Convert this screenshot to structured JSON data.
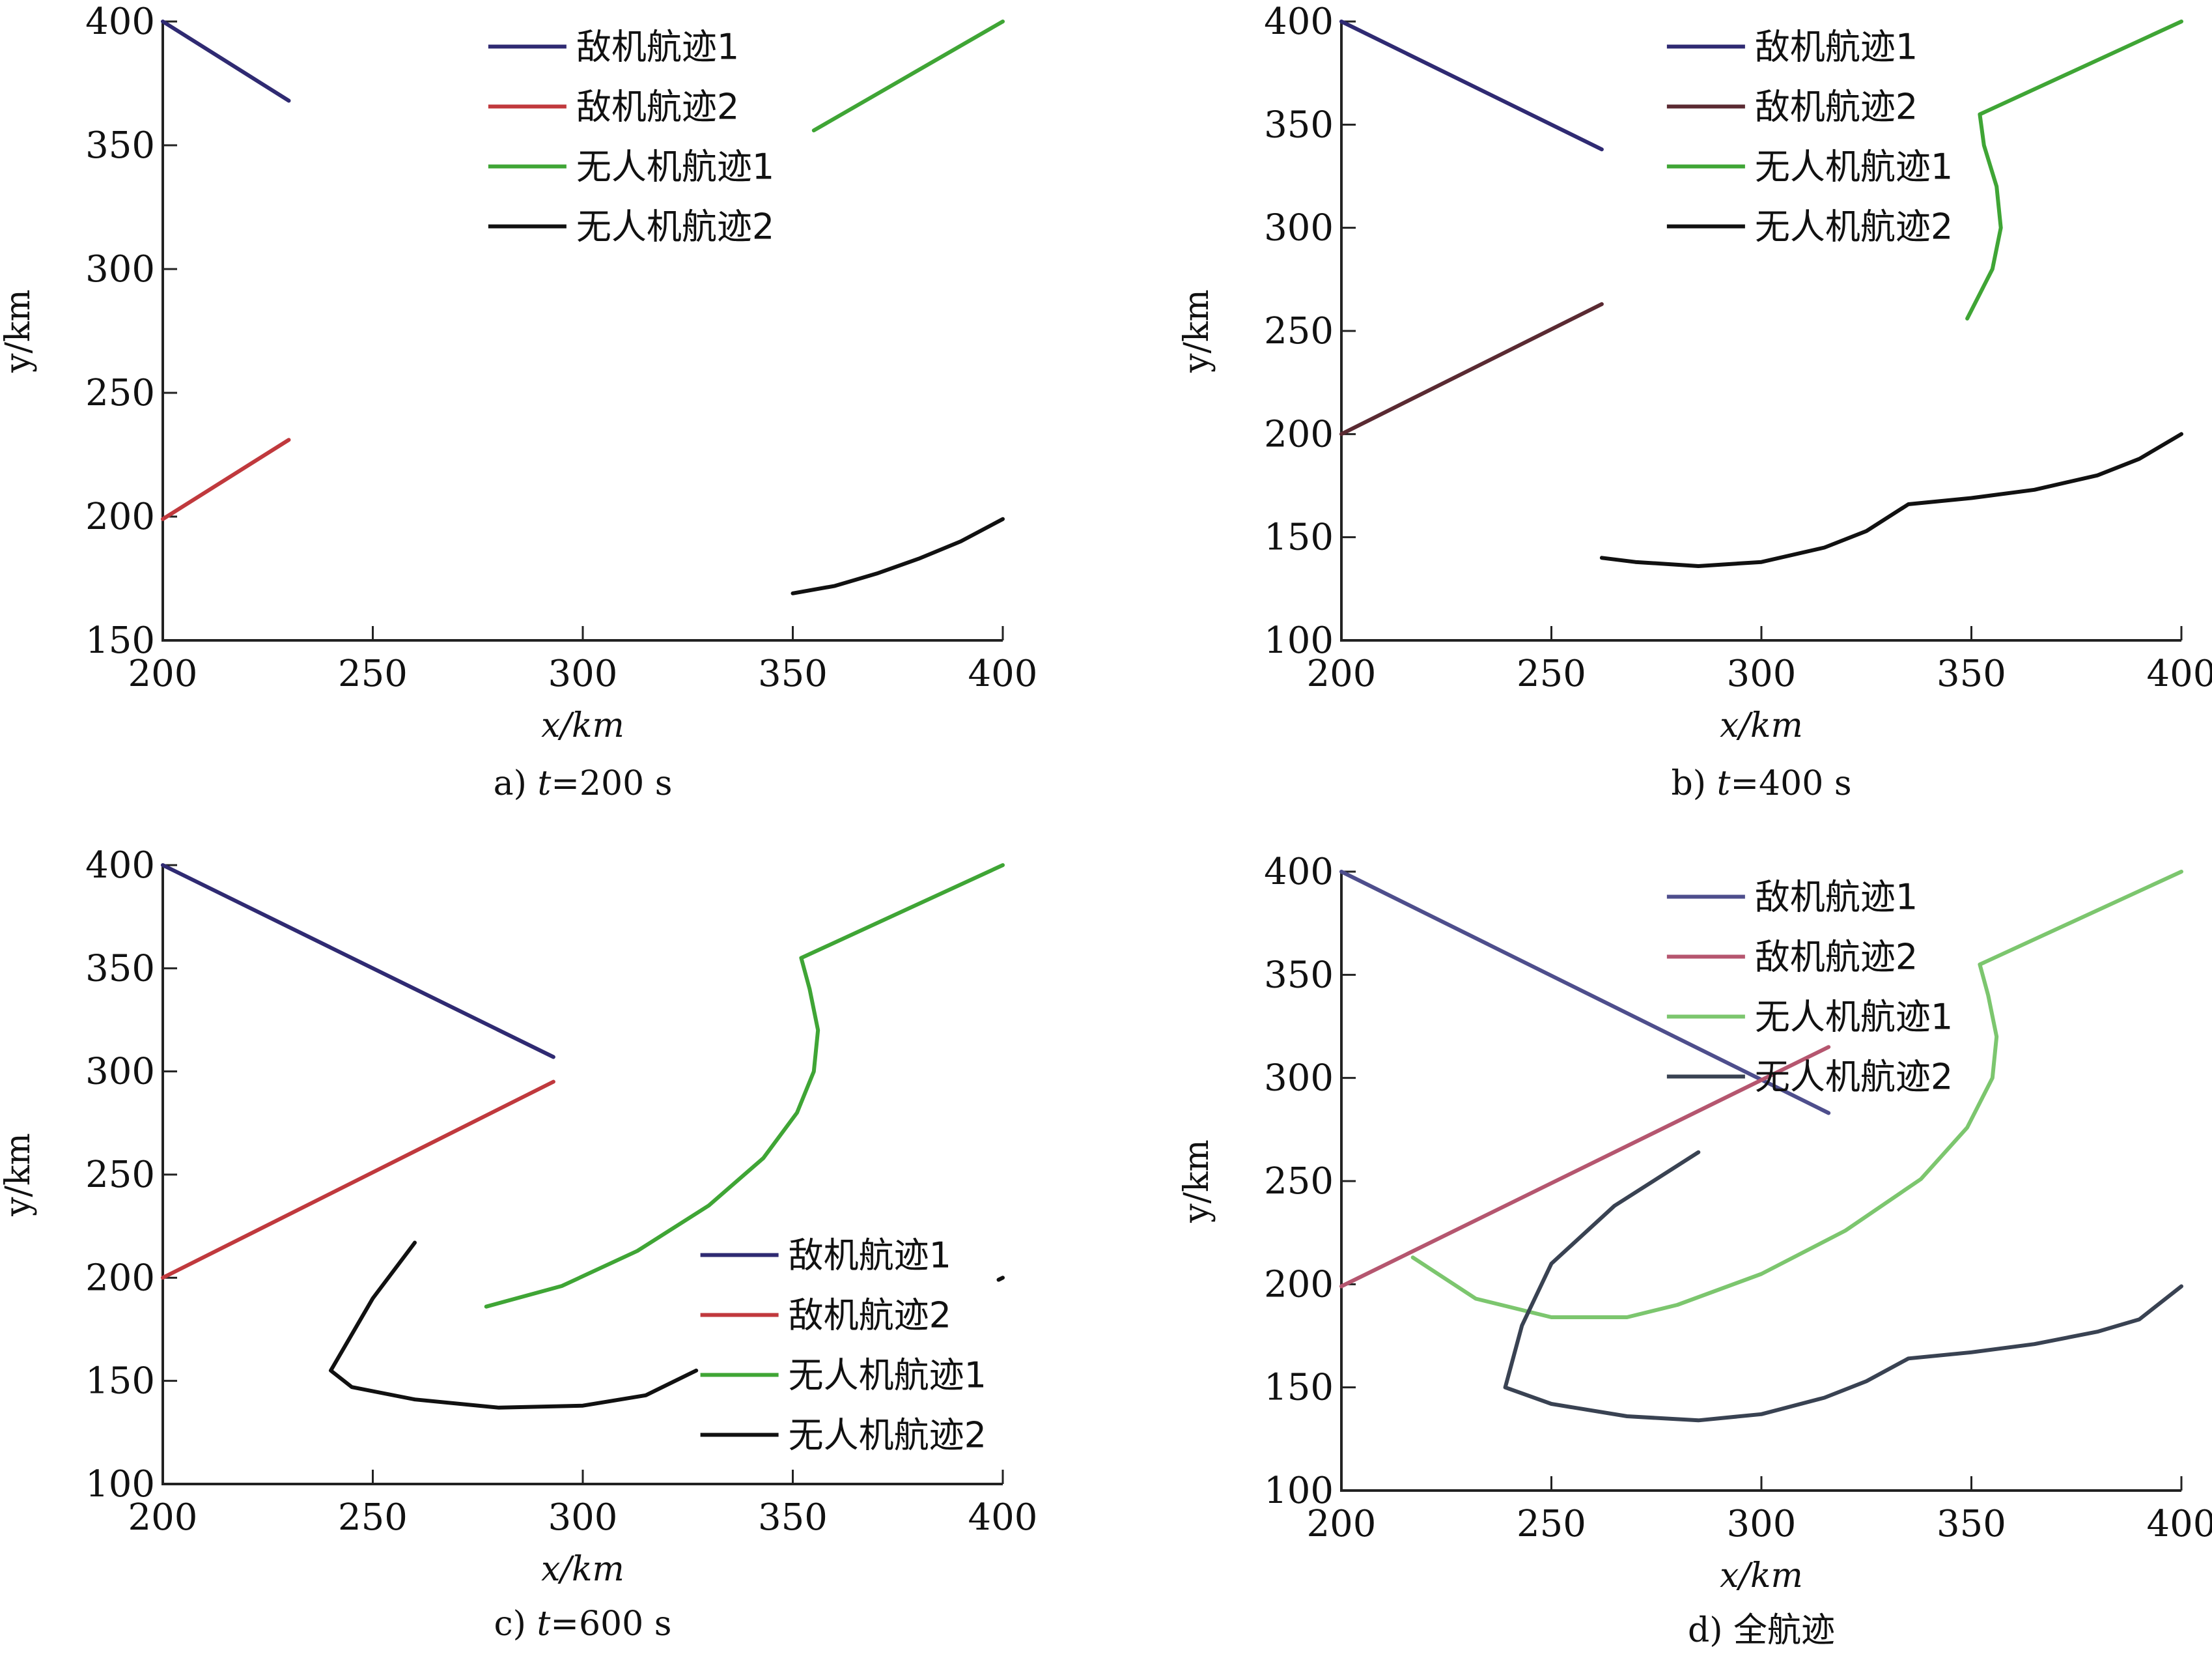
{
  "chart_data": [
    {
      "type": "line",
      "caption": "a) t=200 s",
      "caption_parts": [
        "a) ",
        "t",
        "=200 s"
      ],
      "xlabel": "x/km",
      "ylabel": "y/km",
      "xlim": [
        200,
        400
      ],
      "ylim": [
        150,
        400
      ],
      "xticks": [
        200,
        250,
        300,
        350,
        400
      ],
      "yticks": [
        150,
        200,
        250,
        300,
        350,
        400
      ],
      "legend_position": "top-center",
      "series": [
        {
          "name": "敌机航迹1",
          "color": "#2f2a72",
          "points": [
            [
              200,
              400
            ],
            [
              230,
              368
            ]
          ]
        },
        {
          "name": "敌机航迹2",
          "color": "#c0393d",
          "points": [
            [
              200,
              199
            ],
            [
              230,
              231
            ]
          ]
        },
        {
          "name": "无人机航迹1",
          "color": "#3fa535",
          "points": [
            [
              355,
              356
            ],
            [
              400,
              400
            ]
          ]
        },
        {
          "name": "无人机航迹2",
          "color": "#111111",
          "points": [
            [
              350,
              169
            ],
            [
              360,
              172
            ],
            [
              370,
              177
            ],
            [
              380,
              183
            ],
            [
              390,
              190
            ],
            [
              400,
              199
            ]
          ]
        }
      ]
    },
    {
      "type": "line",
      "caption": "b) t=400 s",
      "caption_parts": [
        "b) ",
        "t",
        "=400 s"
      ],
      "xlabel": "x/km",
      "ylabel": "y/km",
      "xlim": [
        200,
        400
      ],
      "ylim": [
        100,
        400
      ],
      "xticks": [
        200,
        250,
        300,
        350,
        400
      ],
      "yticks": [
        100,
        150,
        200,
        250,
        300,
        350,
        400
      ],
      "legend_position": "top-center",
      "series": [
        {
          "name": "敌机航迹1",
          "color": "#2f2a72",
          "points": [
            [
              200,
              400
            ],
            [
              262,
              338
            ]
          ]
        },
        {
          "name": "敌机航迹2",
          "color": "#5a2a32",
          "points": [
            [
              200,
              200
            ],
            [
              262,
              263
            ]
          ]
        },
        {
          "name": "无人机航迹1",
          "color": "#3fa535",
          "points": [
            [
              400,
              400
            ],
            [
              352,
              355
            ],
            [
              353,
              340
            ],
            [
              356,
              320
            ],
            [
              357,
              300
            ],
            [
              355,
              280
            ],
            [
              349,
              256
            ]
          ]
        },
        {
          "name": "无人机航迹2",
          "color": "#111111",
          "points": [
            [
              262,
              140
            ],
            [
              270,
              138
            ],
            [
              285,
              136
            ],
            [
              300,
              138
            ],
            [
              315,
              145
            ],
            [
              325,
              153
            ],
            [
              335,
              166
            ],
            [
              350,
              169
            ],
            [
              365,
              173
            ],
            [
              380,
              180
            ],
            [
              390,
              188
            ],
            [
              400,
              200
            ]
          ]
        }
      ]
    },
    {
      "type": "line",
      "caption": "c) t=600 s",
      "caption_parts": [
        "c) ",
        "t",
        "=600 s"
      ],
      "xlabel": "x/km",
      "ylabel": "y/km",
      "xlim": [
        200,
        400
      ],
      "ylim": [
        100,
        400
      ],
      "xticks": [
        200,
        250,
        300,
        350,
        400
      ],
      "yticks": [
        100,
        150,
        200,
        250,
        300,
        350,
        400
      ],
      "legend_position": "bottom-right",
      "series": [
        {
          "name": "敌机航迹1",
          "color": "#2f2a72",
          "points": [
            [
              200,
              400
            ],
            [
              293,
              307
            ]
          ]
        },
        {
          "name": "敌机航迹2",
          "color": "#c0393d",
          "points": [
            [
              200,
              200
            ],
            [
              293,
              295
            ]
          ]
        },
        {
          "name": "无人机航迹1",
          "color": "#3fa535",
          "points": [
            [
              400,
              400
            ],
            [
              352,
              355
            ],
            [
              354,
              340
            ],
            [
              356,
              320
            ],
            [
              355,
              300
            ],
            [
              351,
              280
            ],
            [
              343,
              258
            ],
            [
              330,
              235
            ],
            [
              313,
              213
            ],
            [
              295,
              196
            ],
            [
              277,
              186
            ]
          ]
        },
        {
          "name": "无人机航迹2",
          "color": "#111111",
          "points": [
            [
              260,
              217
            ],
            [
              250,
              190
            ],
            [
              240,
              155
            ],
            [
              245,
              147
            ],
            [
              260,
              141
            ],
            [
              280,
              137
            ],
            [
              300,
              138
            ],
            [
              315,
              143
            ],
            [
              327,
              155
            ]
          ]
        },
        {
          "name": "",
          "color": "#111111",
          "points": [
            [
              400,
              200
            ],
            [
              399,
              199
            ]
          ]
        }
      ]
    },
    {
      "type": "line",
      "caption": "d) 全航迹",
      "caption_parts": [
        "d) 全航迹",
        "",
        ""
      ],
      "xlabel": "x/km",
      "ylabel": "y/km",
      "xlim": [
        200,
        400
      ],
      "ylim": [
        100,
        400
      ],
      "xticks": [
        200,
        250,
        300,
        350,
        400
      ],
      "yticks": [
        100,
        150,
        200,
        250,
        300,
        350,
        400
      ],
      "legend_position": "top-center",
      "series": [
        {
          "name": "敌机航迹1",
          "color": "#4e4e8c",
          "points": [
            [
              200,
              400
            ],
            [
              316,
              283
            ]
          ]
        },
        {
          "name": "敌机航迹2",
          "color": "#b5566f",
          "points": [
            [
              200,
              199
            ],
            [
              316,
              315
            ]
          ]
        },
        {
          "name": "无人机航迹1",
          "color": "#7cc66e",
          "points": [
            [
              400,
              400
            ],
            [
              352,
              355
            ],
            [
              354,
              340
            ],
            [
              356,
              320
            ],
            [
              355,
              300
            ],
            [
              349,
              276
            ],
            [
              338,
              251
            ],
            [
              320,
              226
            ],
            [
              300,
              205
            ],
            [
              280,
              190
            ],
            [
              268,
              184
            ],
            [
              250,
              184
            ],
            [
              232,
              193
            ],
            [
              217,
              213
            ]
          ]
        },
        {
          "name": "无人机航迹2",
          "color": "#394252",
          "points": [
            [
              285,
              264
            ],
            [
              265,
              238
            ],
            [
              250,
              210
            ],
            [
              243,
              180
            ],
            [
              239,
              150
            ],
            [
              250,
              142
            ],
            [
              268,
              136
            ],
            [
              285,
              134
            ],
            [
              300,
              137
            ],
            [
              315,
              145
            ],
            [
              325,
              153
            ],
            [
              335,
              164
            ],
            [
              350,
              167
            ],
            [
              365,
              171
            ],
            [
              380,
              177
            ],
            [
              390,
              183
            ],
            [
              400,
              199
            ]
          ]
        }
      ]
    }
  ]
}
